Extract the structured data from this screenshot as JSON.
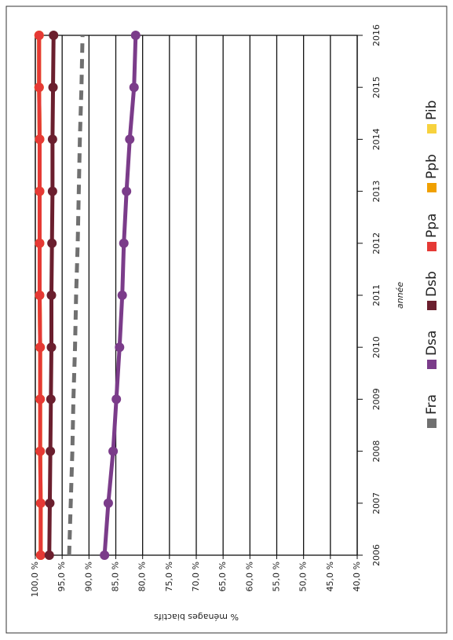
{
  "chart_data": {
    "type": "line",
    "x": [
      2006,
      2007,
      2008,
      2009,
      2010,
      2011,
      2012,
      2013,
      2014,
      2015,
      2016
    ],
    "series": [
      {
        "name": "Fra",
        "color": "#707070",
        "dashed": true,
        "markers": false,
        "values": [
          93.7,
          93.4,
          93.1,
          92.9,
          92.6,
          92.4,
          92.1,
          91.9,
          91.7,
          91.4,
          91.2
        ]
      },
      {
        "name": "Dsa",
        "color": "#7b3c8a",
        "markers": true,
        "values": [
          87.1,
          86.4,
          85.5,
          84.9,
          84.3,
          83.8,
          83.5,
          83.0,
          82.4,
          81.6,
          81.3
        ]
      },
      {
        "name": "Dsb",
        "color": "#6b1f2e",
        "markers": true,
        "values": [
          97.4,
          97.3,
          97.2,
          97.1,
          97.0,
          97.0,
          96.9,
          96.8,
          96.8,
          96.7,
          96.6
        ]
      },
      {
        "name": "Ppa",
        "color": "#e53935",
        "markers": true,
        "values": [
          99.0,
          99.0,
          99.1,
          99.1,
          99.1,
          99.2,
          99.2,
          99.2,
          99.2,
          99.3,
          99.3
        ]
      },
      {
        "name": "Ppb",
        "color": "#f0a000",
        "markers": true,
        "values": [
          99.0,
          99.0,
          99.1,
          99.1,
          99.1,
          99.2,
          99.2,
          99.2,
          99.2,
          99.3,
          99.3
        ]
      },
      {
        "name": "Pib",
        "color": "#f7d23e",
        "markers": true,
        "values": [
          99.0,
          99.0,
          99.1,
          99.1,
          99.1,
          99.2,
          99.2,
          99.2,
          99.2,
          99.3,
          99.3
        ]
      }
    ],
    "xlabel": "année",
    "ylabel": "% ménages biactifs",
    "xlim": [
      2006,
      2016
    ],
    "xticks": [
      2006,
      2007,
      2008,
      2009,
      2010,
      2011,
      2012,
      2013,
      2014,
      2015,
      2016
    ],
    "ylim": [
      40,
      100
    ],
    "yticks": [
      {
        "value": 40,
        "label": "40,0 %"
      },
      {
        "value": 45,
        "label": "45,0 %"
      },
      {
        "value": 50,
        "label": "50,0 %"
      },
      {
        "value": 55,
        "label": "55,0 %"
      },
      {
        "value": 60,
        "label": "60,0 %"
      },
      {
        "value": 65,
        "label": "65,0 %"
      },
      {
        "value": 70,
        "label": "70,0 %"
      },
      {
        "value": 75,
        "label": "75,0 %"
      },
      {
        "value": 80,
        "label": "80,0 %"
      },
      {
        "value": 85,
        "label": "85,0 %"
      },
      {
        "value": 90,
        "label": "90,0 %"
      },
      {
        "value": 95,
        "label": "95,0 %"
      },
      {
        "value": 100,
        "label": "100,0 %"
      }
    ],
    "grid": true,
    "legend": "bottom"
  }
}
